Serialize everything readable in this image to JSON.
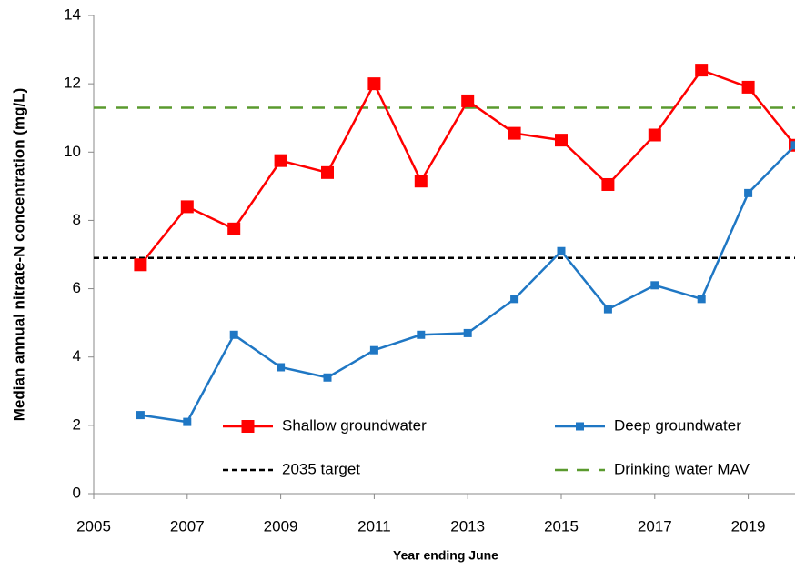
{
  "chart_data": {
    "type": "line",
    "x_label": "Year ending June",
    "y_label": "Median annual  nitrate-N concentration (mg/L)",
    "x": [
      2006,
      2007,
      2008,
      2009,
      2010,
      2011,
      2012,
      2013,
      2014,
      2015,
      2016,
      2017,
      2018,
      2019,
      2020
    ],
    "series": [
      {
        "name": "Shallow groundwater",
        "color": "#ff0000",
        "marker": "square-large",
        "values": [
          6.7,
          8.4,
          7.75,
          9.75,
          9.4,
          12.0,
          9.15,
          11.5,
          10.55,
          10.35,
          9.05,
          10.5,
          12.4,
          11.9,
          10.2
        ]
      },
      {
        "name": "Deep groundwater",
        "color": "#1f77c4",
        "marker": "square-small",
        "values": [
          2.3,
          2.1,
          4.65,
          3.7,
          3.4,
          4.2,
          4.65,
          4.7,
          5.7,
          7.1,
          5.4,
          6.1,
          5.7,
          8.8,
          10.2
        ]
      }
    ],
    "reference_lines": [
      {
        "name": "2035 target",
        "value": 6.9,
        "color": "#000000"
      },
      {
        "name": "Drinking water MAV",
        "value": 11.3,
        "color": "#5a9a2e"
      }
    ],
    "xlim": [
      2005,
      2020
    ],
    "xticks": [
      2005,
      2007,
      2009,
      2011,
      2013,
      2015,
      2017,
      2019
    ],
    "ylim": [
      0,
      14
    ],
    "yticks": [
      0,
      2,
      4,
      6,
      8,
      10,
      12,
      14
    ],
    "grid": false
  }
}
